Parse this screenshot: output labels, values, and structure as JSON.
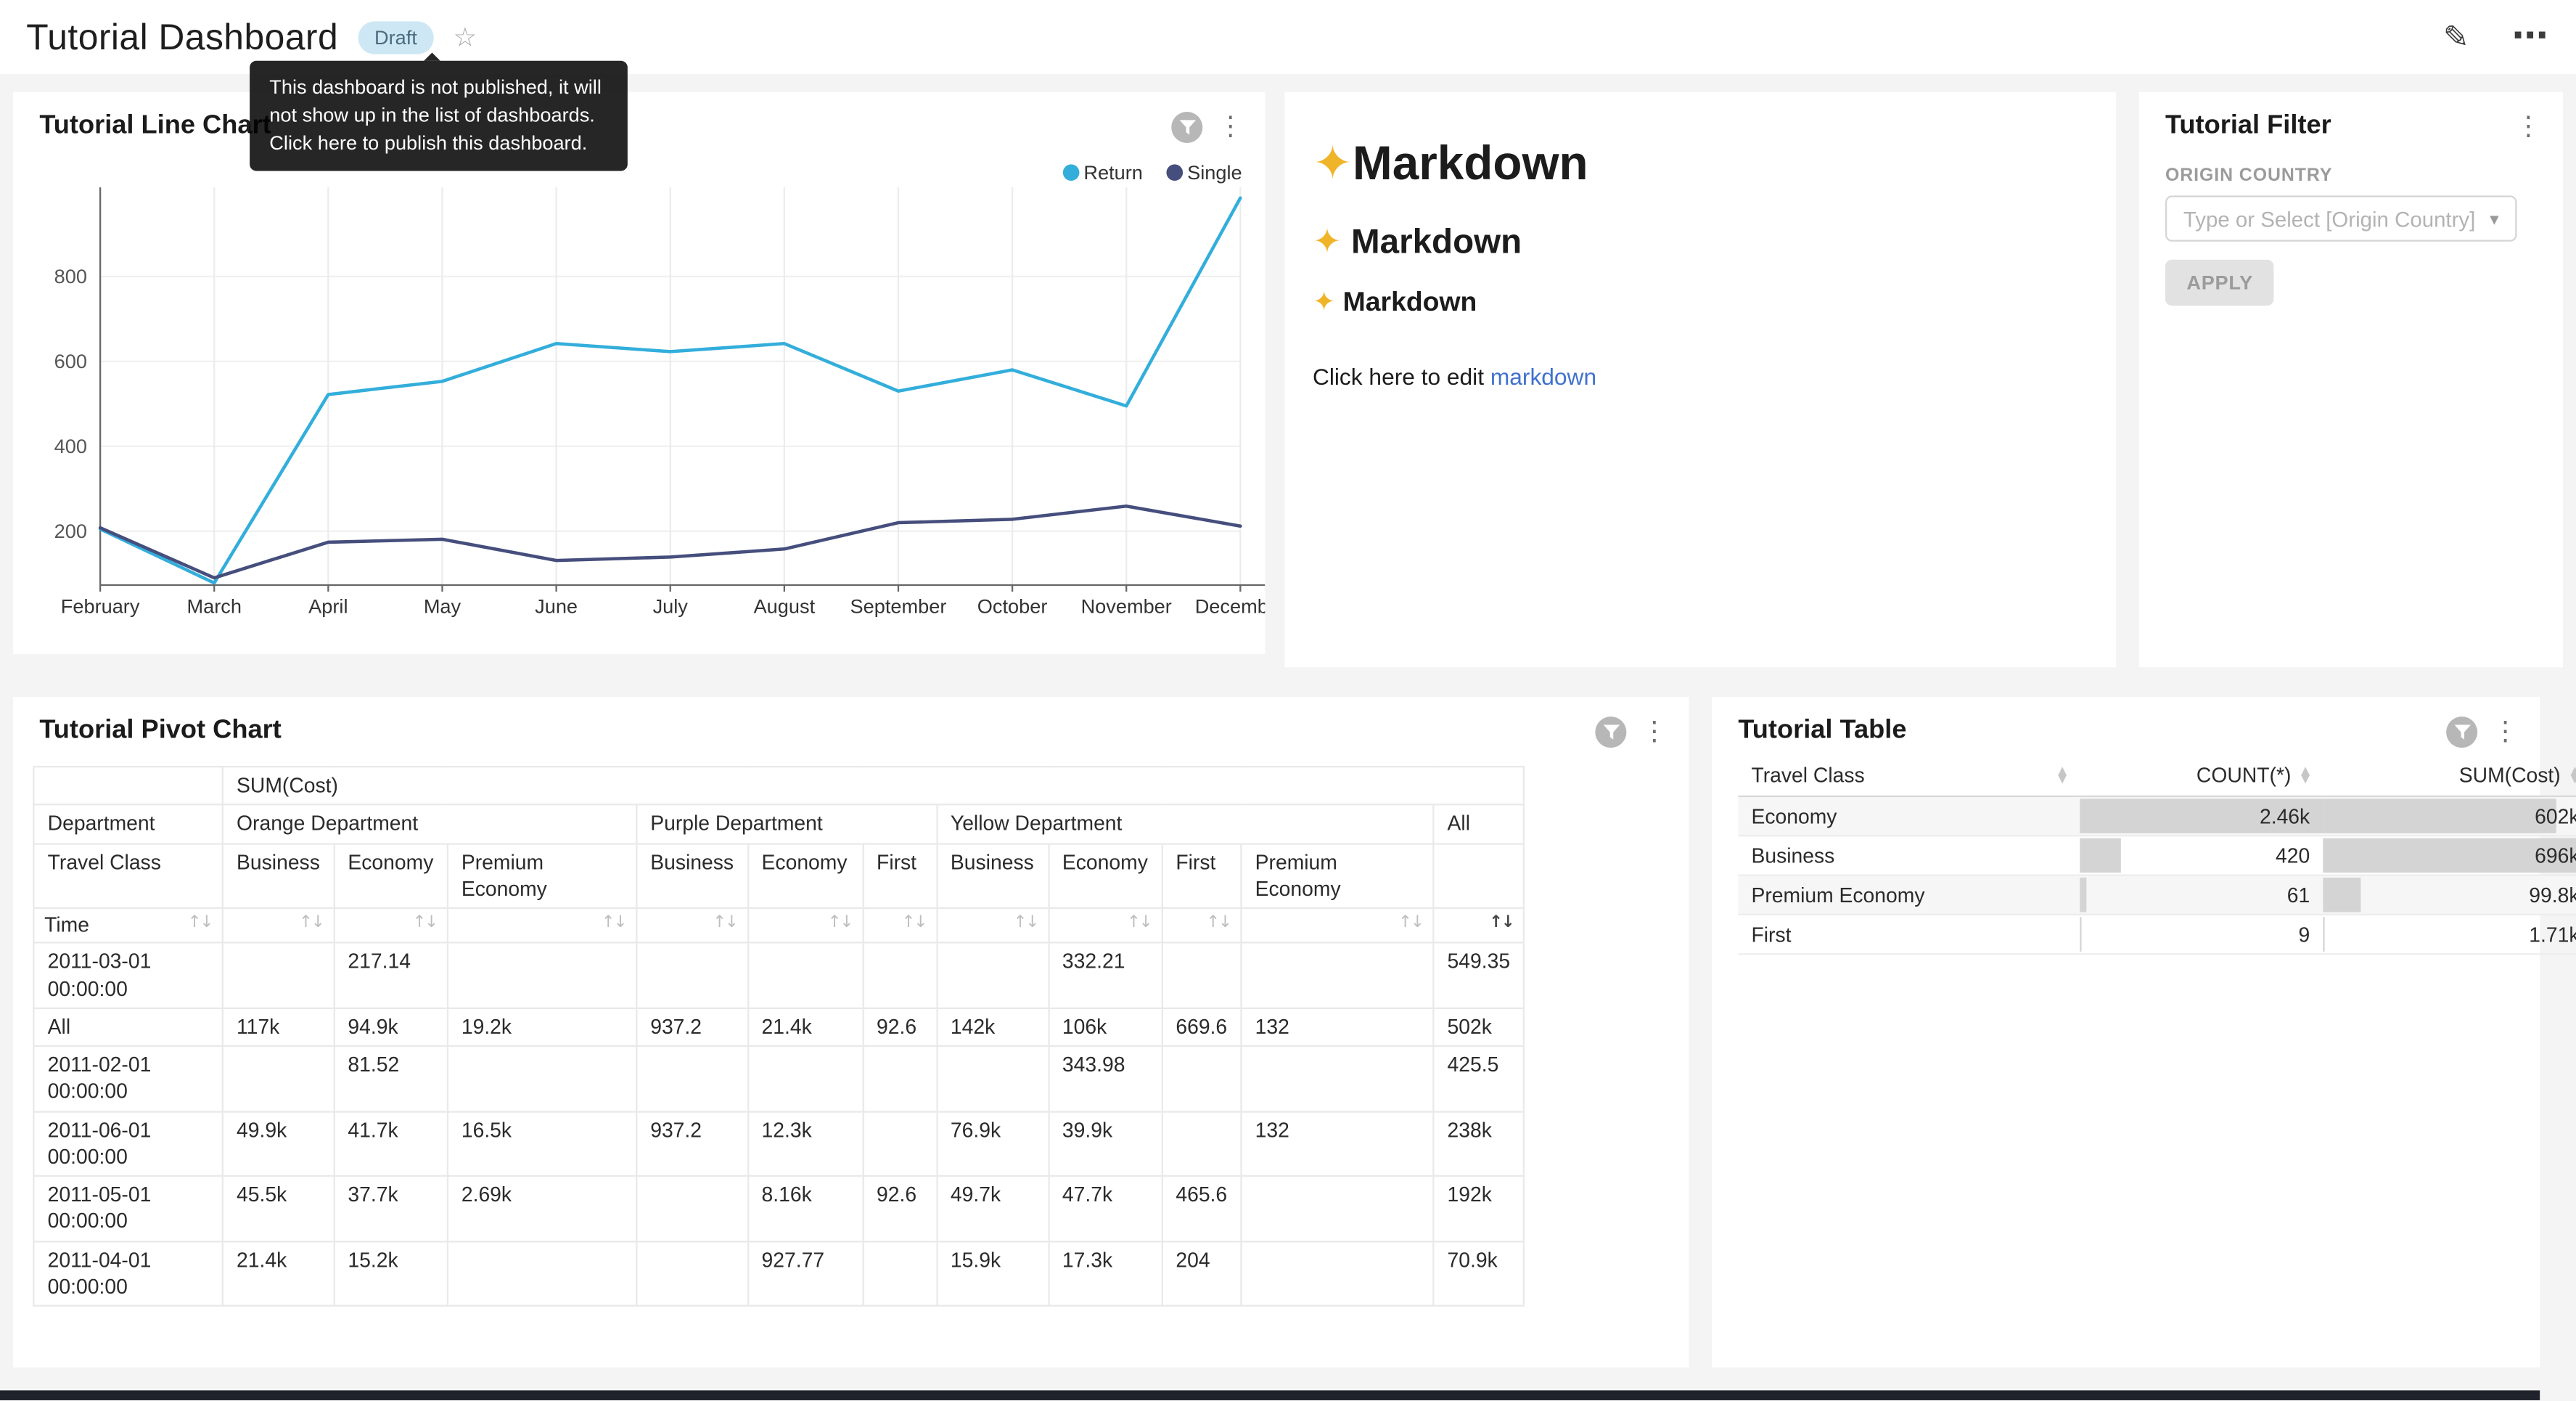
{
  "app": {
    "title": "Tutorial Dashboard",
    "badge": "Draft",
    "publish_tooltip": "This dashboard is not published, it will not show up in the list of dashboards. Click here to publish this dashboard.",
    "edit_icon_glyph": "✎",
    "more_icon_glyph": "⋯",
    "star_icon_glyph": "☆"
  },
  "glyphs": {
    "kebab": "⋮",
    "caret": "▾",
    "sort": "↑↓",
    "sort_asc": "▲",
    "sort_desc": "▼",
    "sparkle_fallback": "✦"
  },
  "line_chart_card": {
    "title": "Tutorial Line Chart"
  },
  "markdown_card": {
    "heading1": "✨Markdown",
    "heading2": "✨ Markdown",
    "heading3": "✨ Markdown",
    "paragraph_text": "Click here to edit ",
    "link_text": "markdown"
  },
  "filter_card": {
    "title": "Tutorial Filter",
    "field_label": "ORIGIN COUNTRY",
    "select_placeholder": "Type or Select [Origin Country]",
    "apply_label": "APPLY"
  },
  "pivot_card": {
    "title": "Tutorial Pivot Chart"
  },
  "table_card": {
    "title": "Tutorial Table"
  },
  "chart_data": [
    {
      "type": "line",
      "name": "Tutorial Line Chart",
      "x": [
        "February",
        "March",
        "April",
        "May",
        "June",
        "July",
        "August",
        "September",
        "October",
        "November",
        "December"
      ],
      "series": [
        {
          "name": "Return",
          "color": "#33AEDB",
          "values": [
            205,
            78,
            522,
            553,
            642,
            623,
            642,
            530,
            580,
            495,
            985
          ]
        },
        {
          "name": "Single",
          "color": "#454E7C",
          "values": [
            208,
            90,
            174,
            181,
            131,
            139,
            158,
            220,
            228,
            259,
            212
          ]
        }
      ],
      "yticks": [
        200,
        400,
        600,
        800
      ],
      "ylim": [
        73,
        1010
      ],
      "legend_position": "top-right",
      "grid": true
    },
    {
      "type": "table",
      "name": "Tutorial Pivot Chart",
      "metric_header": "SUM(Cost)",
      "column_dimension_label": "Department",
      "subcolumn_dimension_label": "Travel Class",
      "row_dimension_label": "Time",
      "sorted_column_index": 10,
      "column_groups": [
        {
          "label": "Orange Department",
          "columns": [
            "Business",
            "Economy",
            "Premium Economy"
          ]
        },
        {
          "label": "Purple Department",
          "columns": [
            "Business",
            "Economy",
            "First"
          ]
        },
        {
          "label": "Yellow Department",
          "columns": [
            "Business",
            "Economy",
            "First",
            "Premium Economy"
          ]
        },
        {
          "label": "All",
          "columns": [
            ""
          ]
        }
      ],
      "rows": [
        {
          "label": "2011-03-01 00:00:00",
          "values": [
            "",
            "217.14",
            "",
            "",
            "",
            "",
            "",
            "332.21",
            "",
            "",
            "549.35"
          ]
        },
        {
          "label": "All",
          "values": [
            "117k",
            "94.9k",
            "19.2k",
            "937.2",
            "21.4k",
            "92.6",
            "142k",
            "106k",
            "669.6",
            "132",
            "502k"
          ]
        },
        {
          "label": "2011-02-01 00:00:00",
          "values": [
            "",
            "81.52",
            "",
            "",
            "",
            "",
            "",
            "343.98",
            "",
            "",
            "425.5"
          ]
        },
        {
          "label": "2011-06-01 00:00:00",
          "values": [
            "49.9k",
            "41.7k",
            "16.5k",
            "937.2",
            "12.3k",
            "",
            "76.9k",
            "39.9k",
            "",
            "132",
            "238k"
          ]
        },
        {
          "label": "2011-05-01 00:00:00",
          "values": [
            "45.5k",
            "37.7k",
            "2.69k",
            "",
            "8.16k",
            "92.6",
            "49.7k",
            "47.7k",
            "465.6",
            "",
            "192k"
          ]
        },
        {
          "label": "2011-04-01 00:00:00",
          "values": [
            "21.4k",
            "15.2k",
            "",
            "",
            "927.77",
            "",
            "15.9k",
            "17.3k",
            "204",
            "",
            "70.9k"
          ]
        }
      ]
    },
    {
      "type": "table",
      "name": "Tutorial Table",
      "columns": [
        "Travel Class",
        "COUNT(*)",
        "SUM(Cost)"
      ],
      "rows": [
        {
          "travel_class": "Economy",
          "count": "2.46k",
          "count_bar_pct": 100,
          "sum": "602k",
          "sum_bar_pct": 86.5
        },
        {
          "travel_class": "Business",
          "count": "420",
          "count_bar_pct": 17.1,
          "sum": "696k",
          "sum_bar_pct": 100
        },
        {
          "travel_class": "Premium Economy",
          "count": "61",
          "count_bar_pct": 2.5,
          "sum": "99.8k",
          "sum_bar_pct": 14.3
        },
        {
          "travel_class": "First",
          "count": "9",
          "count_bar_pct": 0.4,
          "sum": "1.71k",
          "sum_bar_pct": 0.2
        }
      ]
    }
  ]
}
